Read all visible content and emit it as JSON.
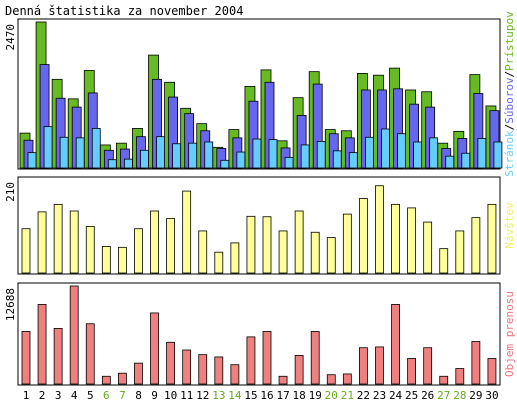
{
  "chart_data": [
    {
      "type": "bar",
      "title": "Denná štatistika za november 2004",
      "ylabel_max": "2470",
      "ylim": [
        0,
        2470
      ],
      "categories": [
        "1",
        "2",
        "3",
        "4",
        "5",
        "6",
        "7",
        "8",
        "9",
        "10",
        "11",
        "12",
        "13",
        "14",
        "15",
        "16",
        "17",
        "18",
        "19",
        "20",
        "21",
        "22",
        "23",
        "24",
        "25",
        "26",
        "27",
        "28",
        "29",
        "30"
      ],
      "weekend_days": [
        "6",
        "7",
        "13",
        "14",
        "20",
        "21",
        "27",
        "28"
      ],
      "legend_words": [
        {
          "text": "Stránok",
          "color": "#66ccff"
        },
        {
          "text": "/",
          "color": "#000000"
        },
        {
          "text": "Súborov",
          "color": "#6666ee"
        },
        {
          "text": "/",
          "color": "#000000"
        },
        {
          "text": "Prístupov",
          "color": "#66bb22"
        }
      ],
      "series": [
        {
          "name": "Prístupov",
          "color": "#66bb22",
          "values": [
            590,
            2470,
            1500,
            1170,
            1650,
            390,
            420,
            670,
            1910,
            1450,
            1010,
            750,
            350,
            650,
            1380,
            1660,
            460,
            1190,
            1630,
            650,
            630,
            1600,
            1570,
            1690,
            1320,
            1290,
            420,
            620,
            1580,
            1050
          ]
        },
        {
          "name": "Súborov",
          "color": "#6666ee",
          "values": [
            470,
            1750,
            1180,
            1030,
            1270,
            300,
            320,
            530,
            1500,
            1200,
            920,
            630,
            330,
            510,
            1130,
            1450,
            340,
            890,
            1420,
            580,
            510,
            1320,
            1320,
            1340,
            1080,
            1030,
            330,
            500,
            1260,
            970
          ]
        },
        {
          "name": "Stránok",
          "color": "#66ccff",
          "values": [
            260,
            700,
            520,
            510,
            670,
            140,
            150,
            300,
            530,
            410,
            420,
            440,
            130,
            270,
            490,
            480,
            180,
            390,
            450,
            290,
            260,
            520,
            660,
            580,
            440,
            510,
            200,
            250,
            500,
            440
          ]
        }
      ]
    },
    {
      "type": "bar",
      "ylabel_max": "210",
      "ylim": [
        0,
        210
      ],
      "legend_words": [
        {
          "text": "Návštev",
          "color": "#eeee66"
        }
      ],
      "series": [
        {
          "name": "Návštev",
          "color": "#ffff99",
          "values": [
            100,
            138,
            155,
            140,
            105,
            60,
            58,
            100,
            140,
            123,
            185,
            95,
            47,
            68,
            128,
            127,
            95,
            140,
            92,
            80,
            133,
            168,
            197,
            155,
            147,
            115,
            55,
            95,
            125,
            155
          ]
        }
      ]
    },
    {
      "type": "bar",
      "ylabel_max": "12688",
      "ylim": [
        0,
        12688
      ],
      "legend_words": [
        {
          "text": "Objem prenosu",
          "color": "#ee7777"
        }
      ],
      "series": [
        {
          "name": "Objem prenosu",
          "color": "#f08080",
          "values": [
            6800,
            10300,
            7200,
            12688,
            7800,
            1000,
            1400,
            2700,
            9200,
            5400,
            4400,
            3800,
            3500,
            2500,
            6100,
            6800,
            1000,
            3700,
            6800,
            1200,
            1300,
            4700,
            4800,
            10300,
            3300,
            4700,
            1000,
            2000,
            5500,
            3300
          ]
        }
      ]
    }
  ]
}
